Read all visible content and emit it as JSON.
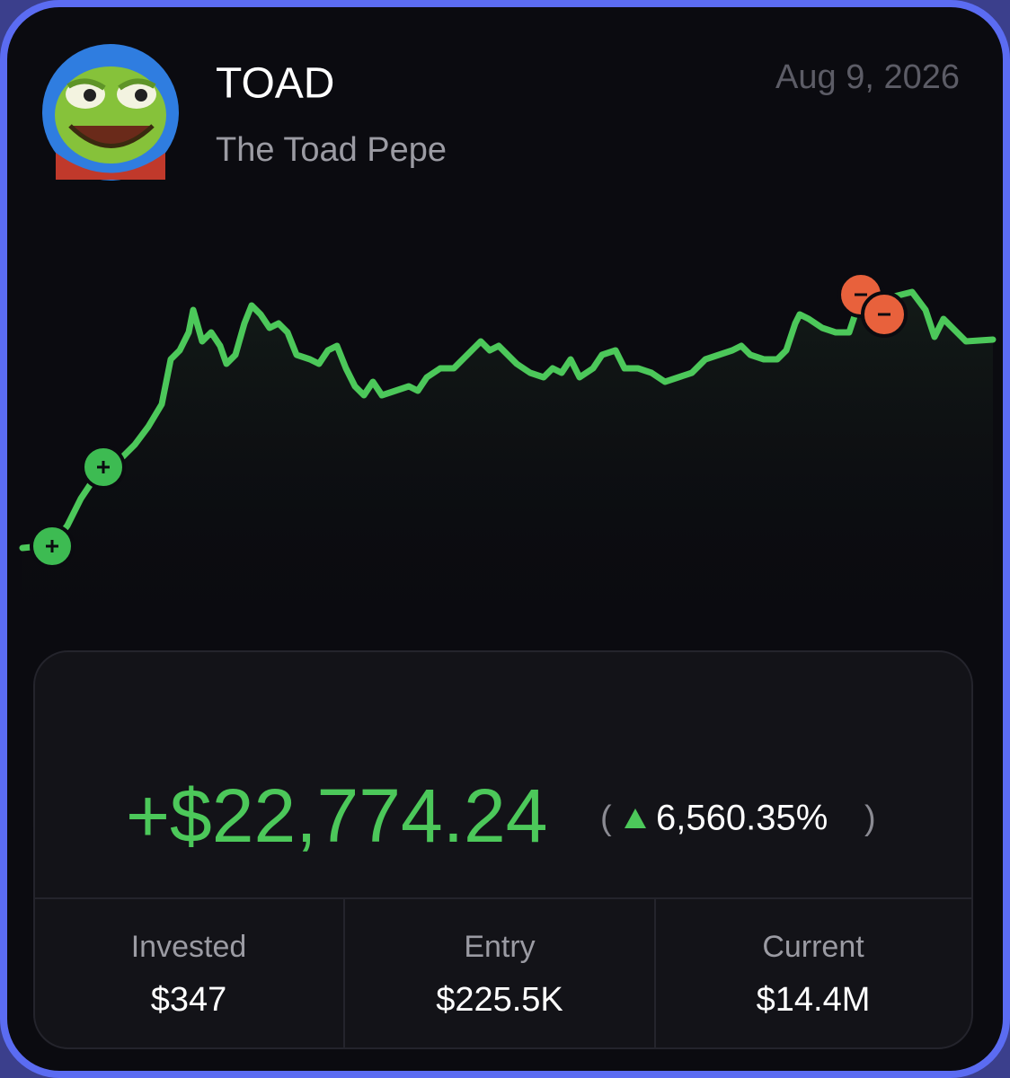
{
  "header": {
    "symbol": "TOAD",
    "name": "The Toad Pepe",
    "date": "Aug 9, 2026"
  },
  "summary": {
    "pnl": "+$22,774.24",
    "change_open": "(",
    "change": "6,560.35%",
    "change_close": ")",
    "stats": [
      {
        "label": "Invested",
        "value": "$347"
      },
      {
        "label": "Entry",
        "value": "$225.5K"
      },
      {
        "label": "Current",
        "value": "$14.4M"
      }
    ]
  }
}
